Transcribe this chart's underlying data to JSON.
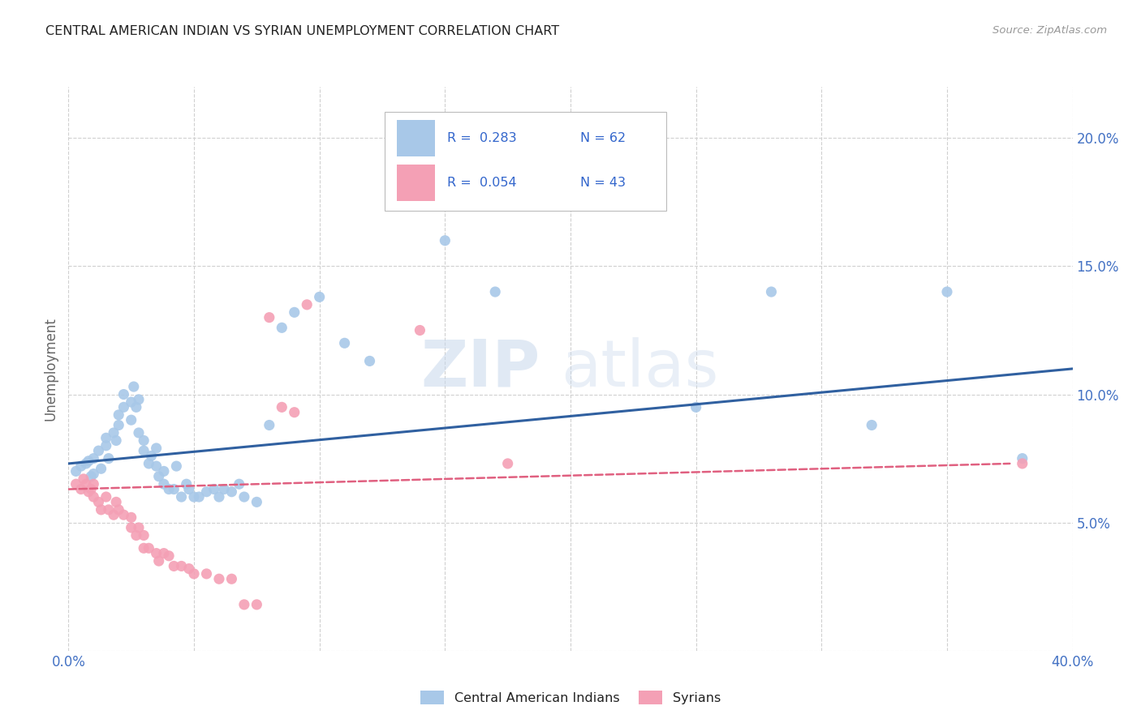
{
  "title": "CENTRAL AMERICAN INDIAN VS SYRIAN UNEMPLOYMENT CORRELATION CHART",
  "source": "Source: ZipAtlas.com",
  "ylabel": "Unemployment",
  "xlim": [
    0.0,
    0.4
  ],
  "ylim": [
    0.0,
    0.22
  ],
  "x_ticks": [
    0.0,
    0.05,
    0.1,
    0.15,
    0.2,
    0.25,
    0.3,
    0.35,
    0.4
  ],
  "y_ticks": [
    0.0,
    0.05,
    0.1,
    0.15,
    0.2
  ],
  "y_tick_labels": [
    "",
    "5.0%",
    "10.0%",
    "15.0%",
    "20.0%"
  ],
  "legend_r1": "0.283",
  "legend_n1": "62",
  "legend_r2": "0.054",
  "legend_n2": "43",
  "color_blue": "#a8c8e8",
  "color_pink": "#f4a0b5",
  "color_blue_line": "#3060a0",
  "color_pink_line": "#e06080",
  "watermark_zip": "ZIP",
  "watermark_atlas": "atlas",
  "background_color": "#ffffff",
  "grid_color": "#d0d0d0",
  "blue_scatter_x": [
    0.003,
    0.005,
    0.007,
    0.008,
    0.009,
    0.01,
    0.01,
    0.012,
    0.013,
    0.015,
    0.015,
    0.016,
    0.018,
    0.019,
    0.02,
    0.02,
    0.022,
    0.022,
    0.025,
    0.025,
    0.026,
    0.027,
    0.028,
    0.028,
    0.03,
    0.03,
    0.032,
    0.033,
    0.035,
    0.035,
    0.036,
    0.038,
    0.038,
    0.04,
    0.042,
    0.043,
    0.045,
    0.047,
    0.048,
    0.05,
    0.052,
    0.055,
    0.058,
    0.06,
    0.062,
    0.065,
    0.068,
    0.07,
    0.075,
    0.08,
    0.085,
    0.09,
    0.1,
    0.11,
    0.12,
    0.15,
    0.17,
    0.25,
    0.28,
    0.32,
    0.35,
    0.38
  ],
  "blue_scatter_y": [
    0.07,
    0.072,
    0.073,
    0.074,
    0.068,
    0.069,
    0.075,
    0.078,
    0.071,
    0.08,
    0.083,
    0.075,
    0.085,
    0.082,
    0.088,
    0.092,
    0.095,
    0.1,
    0.09,
    0.097,
    0.103,
    0.095,
    0.085,
    0.098,
    0.078,
    0.082,
    0.073,
    0.076,
    0.072,
    0.079,
    0.068,
    0.065,
    0.07,
    0.063,
    0.063,
    0.072,
    0.06,
    0.065,
    0.063,
    0.06,
    0.06,
    0.062,
    0.063,
    0.06,
    0.063,
    0.062,
    0.065,
    0.06,
    0.058,
    0.088,
    0.126,
    0.132,
    0.138,
    0.12,
    0.113,
    0.16,
    0.14,
    0.095,
    0.14,
    0.088,
    0.14,
    0.075
  ],
  "pink_scatter_x": [
    0.003,
    0.005,
    0.006,
    0.007,
    0.008,
    0.009,
    0.01,
    0.01,
    0.012,
    0.013,
    0.015,
    0.016,
    0.018,
    0.019,
    0.02,
    0.022,
    0.025,
    0.025,
    0.027,
    0.028,
    0.03,
    0.03,
    0.032,
    0.035,
    0.036,
    0.038,
    0.04,
    0.042,
    0.045,
    0.048,
    0.05,
    0.055,
    0.06,
    0.065,
    0.07,
    0.075,
    0.08,
    0.085,
    0.09,
    0.095,
    0.14,
    0.175,
    0.38
  ],
  "pink_scatter_y": [
    0.065,
    0.063,
    0.067,
    0.065,
    0.062,
    0.063,
    0.065,
    0.06,
    0.058,
    0.055,
    0.06,
    0.055,
    0.053,
    0.058,
    0.055,
    0.053,
    0.048,
    0.052,
    0.045,
    0.048,
    0.045,
    0.04,
    0.04,
    0.038,
    0.035,
    0.038,
    0.037,
    0.033,
    0.033,
    0.032,
    0.03,
    0.03,
    0.028,
    0.028,
    0.018,
    0.018,
    0.13,
    0.095,
    0.093,
    0.135,
    0.125,
    0.073,
    0.073
  ],
  "blue_line_x": [
    0.0,
    0.4
  ],
  "blue_line_y": [
    0.073,
    0.11
  ],
  "pink_line_x": [
    0.0,
    0.375
  ],
  "pink_line_y": [
    0.063,
    0.073
  ]
}
